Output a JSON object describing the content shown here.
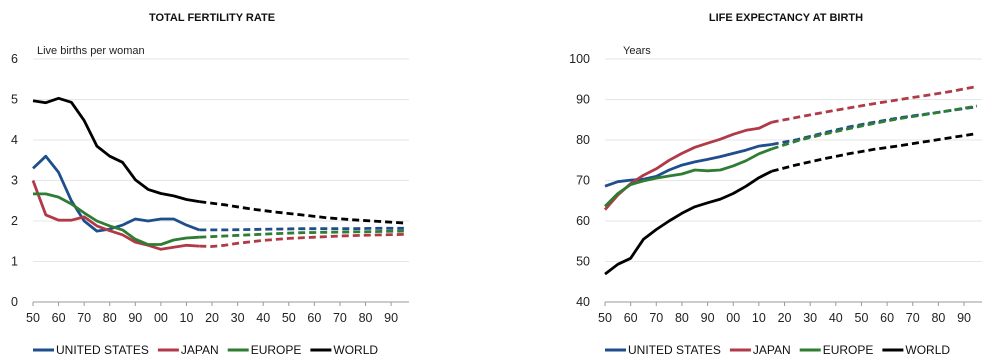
{
  "chart_data": [
    {
      "type": "line",
      "title": "TOTAL FERTILITY RATE",
      "ylabel": "Live births per woman",
      "x_tick_labels": [
        "50",
        "60",
        "70",
        "80",
        "90",
        "00",
        "10",
        "20",
        "30",
        "40",
        "50",
        "60",
        "70",
        "80",
        "90"
      ],
      "y_ticks": [
        0,
        1,
        2,
        3,
        4,
        5,
        6
      ],
      "ylim": [
        0,
        6
      ],
      "xlim": [
        1950,
        2097
      ],
      "projection_start": 2015,
      "grid": true,
      "legend_position": "bottom",
      "series": [
        {
          "name": "UNITED STATES",
          "color": "#1f4e8c",
          "style": "solid",
          "x": [
            1950,
            1955,
            1960,
            1965,
            1970,
            1975,
            1980,
            1985,
            1990,
            1995,
            2000,
            2005,
            2010,
            2015
          ],
          "y": [
            3.3,
            3.6,
            3.2,
            2.5,
            2.0,
            1.75,
            1.8,
            1.9,
            2.05,
            2.0,
            2.05,
            2.05,
            1.9,
            1.78
          ]
        },
        {
          "name": "UNITED STATES projection",
          "color": "#1f4e8c",
          "style": "dashed",
          "x": [
            2015,
            2025,
            2035,
            2045,
            2055,
            2065,
            2075,
            2085,
            2095
          ],
          "y": [
            1.78,
            1.78,
            1.79,
            1.8,
            1.81,
            1.81,
            1.81,
            1.82,
            1.82
          ]
        },
        {
          "name": "JAPAN",
          "color": "#b03a48",
          "style": "solid",
          "x": [
            1950,
            1955,
            1960,
            1965,
            1970,
            1975,
            1980,
            1985,
            1990,
            1995,
            2000,
            2005,
            2010,
            2015
          ],
          "y": [
            3.0,
            2.15,
            2.02,
            2.02,
            2.1,
            1.88,
            1.76,
            1.66,
            1.48,
            1.4,
            1.3,
            1.35,
            1.4,
            1.38
          ]
        },
        {
          "name": "JAPAN projection",
          "color": "#b03a48",
          "style": "dashed",
          "x": [
            2015,
            2020,
            2025,
            2030,
            2040,
            2050,
            2060,
            2070,
            2080,
            2095
          ],
          "y": [
            1.38,
            1.37,
            1.4,
            1.45,
            1.52,
            1.57,
            1.6,
            1.63,
            1.65,
            1.67
          ]
        },
        {
          "name": "EUROPE",
          "color": "#2e7d32",
          "style": "solid",
          "x": [
            1950,
            1955,
            1960,
            1965,
            1970,
            1975,
            1980,
            1985,
            1990,
            1995,
            2000,
            2005,
            2010,
            2015
          ],
          "y": [
            2.67,
            2.67,
            2.59,
            2.42,
            2.2,
            2.0,
            1.88,
            1.78,
            1.55,
            1.42,
            1.42,
            1.53,
            1.58,
            1.6
          ]
        },
        {
          "name": "EUROPE projection",
          "color": "#2e7d32",
          "style": "dashed",
          "x": [
            2015,
            2025,
            2035,
            2045,
            2055,
            2065,
            2075,
            2085,
            2095
          ],
          "y": [
            1.6,
            1.63,
            1.66,
            1.69,
            1.71,
            1.72,
            1.73,
            1.74,
            1.75
          ]
        },
        {
          "name": "WORLD",
          "color": "#000000",
          "style": "solid",
          "x": [
            1950,
            1955,
            1960,
            1965,
            1970,
            1975,
            1980,
            1985,
            1990,
            1995,
            2000,
            2005,
            2010,
            2015
          ],
          "y": [
            4.97,
            4.92,
            5.03,
            4.93,
            4.48,
            3.85,
            3.6,
            3.45,
            3.02,
            2.78,
            2.68,
            2.62,
            2.53,
            2.48
          ]
        },
        {
          "name": "WORLD projection",
          "color": "#000000",
          "style": "dashed",
          "x": [
            2015,
            2025,
            2035,
            2045,
            2055,
            2065,
            2075,
            2085,
            2095
          ],
          "y": [
            2.48,
            2.4,
            2.3,
            2.22,
            2.15,
            2.08,
            2.03,
            1.99,
            1.95
          ]
        }
      ]
    },
    {
      "type": "line",
      "title": "LIFE EXPECTANCY AT BIRTH",
      "ylabel": "Years",
      "x_tick_labels": [
        "50",
        "60",
        "70",
        "80",
        "90",
        "00",
        "10",
        "20",
        "30",
        "40",
        "50",
        "60",
        "70",
        "80",
        "90"
      ],
      "y_ticks": [
        40,
        50,
        60,
        70,
        80,
        90,
        100
      ],
      "ylim": [
        40,
        100
      ],
      "xlim": [
        1950,
        2097
      ],
      "projection_start": 2015,
      "grid": true,
      "legend_position": "bottom",
      "series": [
        {
          "name": "UNITED STATES",
          "color": "#1f4e8c",
          "style": "solid",
          "x": [
            1950,
            1955,
            1960,
            1965,
            1970,
            1975,
            1980,
            1985,
            1990,
            1995,
            2000,
            2005,
            2010,
            2015
          ],
          "y": [
            68.6,
            69.7,
            70.1,
            70.3,
            71.0,
            72.6,
            73.8,
            74.6,
            75.2,
            75.9,
            76.7,
            77.5,
            78.5,
            78.9
          ]
        },
        {
          "name": "UNITED STATES projection",
          "color": "#1f4e8c",
          "style": "dashed",
          "x": [
            2015,
            2025,
            2035,
            2045,
            2055,
            2065,
            2075,
            2085,
            2095
          ],
          "y": [
            78.9,
            80.1,
            81.7,
            83.2,
            84.4,
            85.5,
            86.4,
            87.3,
            88.2
          ]
        },
        {
          "name": "JAPAN",
          "color": "#b03a48",
          "style": "solid",
          "x": [
            1950,
            1955,
            1960,
            1965,
            1970,
            1975,
            1980,
            1985,
            1990,
            1995,
            2000,
            2005,
            2010,
            2015
          ],
          "y": [
            62.8,
            66.4,
            69.2,
            71.3,
            72.9,
            75.0,
            76.7,
            78.2,
            79.2,
            80.2,
            81.4,
            82.4,
            82.9,
            84.4
          ]
        },
        {
          "name": "JAPAN projection",
          "color": "#b03a48",
          "style": "dashed",
          "x": [
            2015,
            2025,
            2035,
            2045,
            2055,
            2065,
            2075,
            2085,
            2095
          ],
          "y": [
            84.4,
            85.6,
            86.8,
            87.9,
            89.0,
            90.0,
            91.0,
            92.0,
            93.2
          ]
        },
        {
          "name": "EUROPE",
          "color": "#2e7d32",
          "style": "solid",
          "x": [
            1950,
            1955,
            1960,
            1965,
            1970,
            1975,
            1980,
            1985,
            1990,
            1995,
            2000,
            2005,
            2010,
            2015
          ],
          "y": [
            63.6,
            66.8,
            69.0,
            69.9,
            70.6,
            71.1,
            71.6,
            72.6,
            72.4,
            72.6,
            73.6,
            74.9,
            76.6,
            77.8
          ]
        },
        {
          "name": "EUROPE projection",
          "color": "#2e7d32",
          "style": "dashed",
          "x": [
            2015,
            2025,
            2035,
            2045,
            2055,
            2065,
            2075,
            2085,
            2095
          ],
          "y": [
            77.8,
            79.8,
            81.4,
            82.8,
            84.1,
            85.3,
            86.3,
            87.3,
            88.4
          ]
        },
        {
          "name": "WORLD",
          "color": "#000000",
          "style": "solid",
          "x": [
            1950,
            1955,
            1960,
            1965,
            1970,
            1975,
            1980,
            1985,
            1990,
            1995,
            2000,
            2005,
            2010,
            2015
          ],
          "y": [
            46.9,
            49.3,
            50.8,
            55.5,
            57.9,
            60.0,
            61.9,
            63.5,
            64.5,
            65.4,
            66.8,
            68.6,
            70.7,
            72.3
          ]
        },
        {
          "name": "WORLD projection",
          "color": "#000000",
          "style": "dashed",
          "x": [
            2015,
            2025,
            2035,
            2045,
            2055,
            2065,
            2075,
            2085,
            2095
          ],
          "y": [
            72.3,
            73.9,
            75.3,
            76.6,
            77.7,
            78.6,
            79.6,
            80.6,
            81.6
          ]
        }
      ]
    }
  ],
  "legend": [
    "UNITED STATES",
    "JAPAN",
    "EUROPE",
    "WORLD"
  ],
  "legend_colors": [
    "#1f4e8c",
    "#b03a48",
    "#2e7d32",
    "#000000"
  ]
}
